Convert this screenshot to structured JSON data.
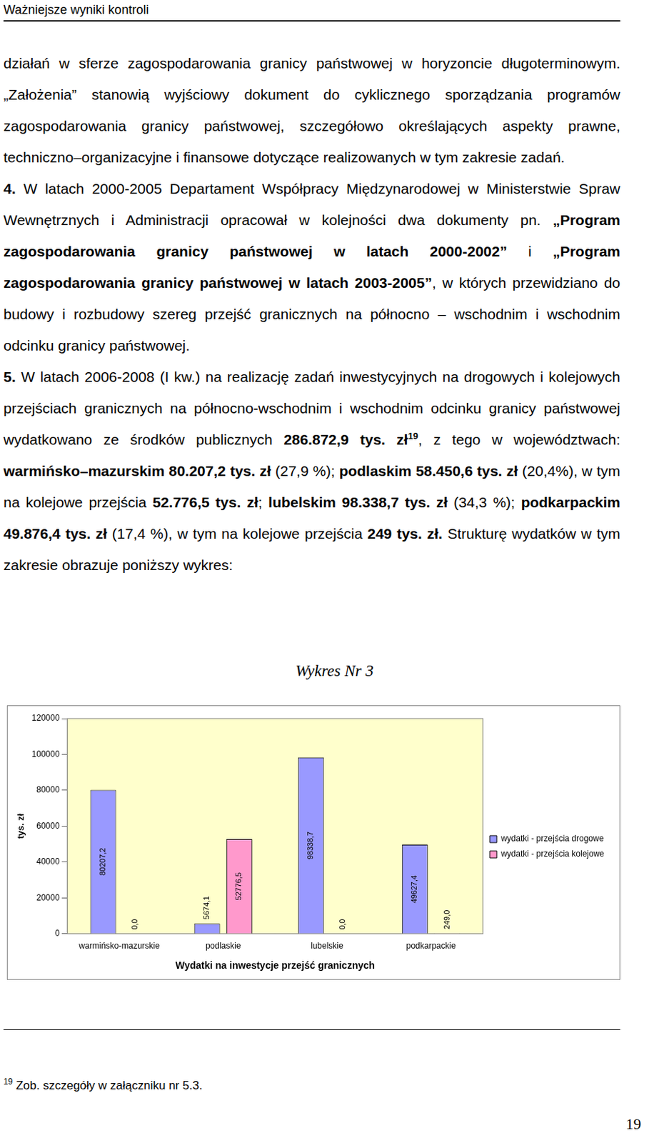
{
  "header": "Ważniejsze wyniki kontroli",
  "paragraphs": [
    [
      {
        "text": "działań w sferze zagospodarowania granicy państwowej w horyzoncie długoterminowym. „Założenia” stanowią wyjściowy dokument do cyklicznego sporządzania programów zagospodarowania granicy państwowej, szczegółowo określających aspekty prawne, techniczno–organizacyjne i finansowe dotyczące realizowanych w tym zakresie zadań."
      }
    ],
    [
      {
        "text": "4.",
        "bold": true
      },
      {
        "text": " W latach 2000-2005 Departament Współpracy Międzynarodowej w Ministerstwie Spraw Wewnętrznych i Administracji opracował w kolejności dwa dokumenty pn. "
      },
      {
        "text": "„Program zagospodarowania granicy państwowej w latach 2000-2002”",
        "bold": true
      },
      {
        "text": " i "
      },
      {
        "text": "„Program zagospodarowania granicy państwowej w latach 2003-2005”",
        "bold": true
      },
      {
        "text": ", w których przewidziano do budowy i rozbudowy szereg przejść granicznych na północno – wschodnim i wschodnim odcinku granicy państwowej."
      }
    ],
    [
      {
        "text": "5.",
        "bold": true
      },
      {
        "text": " W latach 2006-2008 (I kw.) na realizację zadań inwestycyjnych na drogowych i kolejowych przejściach granicznych na północno-wschodnim i wschodnim odcinku granicy państwowej wydatkowano ze środków publicznych "
      },
      {
        "text": "286.872,9 tys. zł",
        "bold": true
      },
      {
        "text": "19",
        "bold": true,
        "sup": true
      },
      {
        "text": ", z tego w województwach: "
      },
      {
        "text": "warmińsko–mazurskim 80.207,2 tys. zł",
        "bold": true
      },
      {
        "text": " (27,9 %); "
      },
      {
        "text": "podlaskim 58.450,6 tys. zł",
        "bold": true
      },
      {
        "text": " (20,4%), w tym na kolejowe przejścia "
      },
      {
        "text": "52.776,5 tys. zł",
        "bold": true
      },
      {
        "text": "; "
      },
      {
        "text": "lubelskim 98.338,7 tys. zł",
        "bold": true
      },
      {
        "text": " (34,3 %); "
      },
      {
        "text": "podkarpackim 49.876,4 tys. zł",
        "bold": true
      },
      {
        "text": " (17,4 %), w tym na kolejowe przejścia "
      },
      {
        "text": "249 tys. zł.",
        "bold": true
      },
      {
        "text": " Strukturę wydatków w tym zakresie obrazuje poniższy wykres:"
      }
    ]
  ],
  "chart_data": {
    "type": "bar",
    "title": "Wykres Nr 3",
    "x_label": "Wydatki na inwestycje przejść granicznych",
    "y_label": "tys. zł",
    "categories": [
      "warmińsko-mazurskie",
      "podlaskie",
      "lubelskie",
      "podkarpackie"
    ],
    "series": [
      {
        "name": "wydatki - przejścia drogowe",
        "color": "#9999ff",
        "values": [
          80207.2,
          5674.1,
          98338.7,
          49627.4
        ],
        "value_labels": [
          "80207,2",
          "5674,1",
          "98338,7",
          "49627,4"
        ]
      },
      {
        "name": "wydatki - przejścia kolejowe",
        "color": "#ff99cc",
        "values": [
          0,
          52776.5,
          0,
          249.0
        ],
        "value_labels": [
          "0,0",
          "52776,5",
          "0,0",
          "249,0"
        ]
      }
    ],
    "ylim": [
      0,
      120000
    ],
    "yticks": [
      0,
      20000,
      40000,
      60000,
      80000,
      100000,
      120000
    ],
    "grid": true,
    "legend": "right",
    "data_labels": true
  },
  "footnote": {
    "mark": "19",
    "text": "Zob. szczegóły w załączniku nr 5.3."
  },
  "page_number": "19"
}
